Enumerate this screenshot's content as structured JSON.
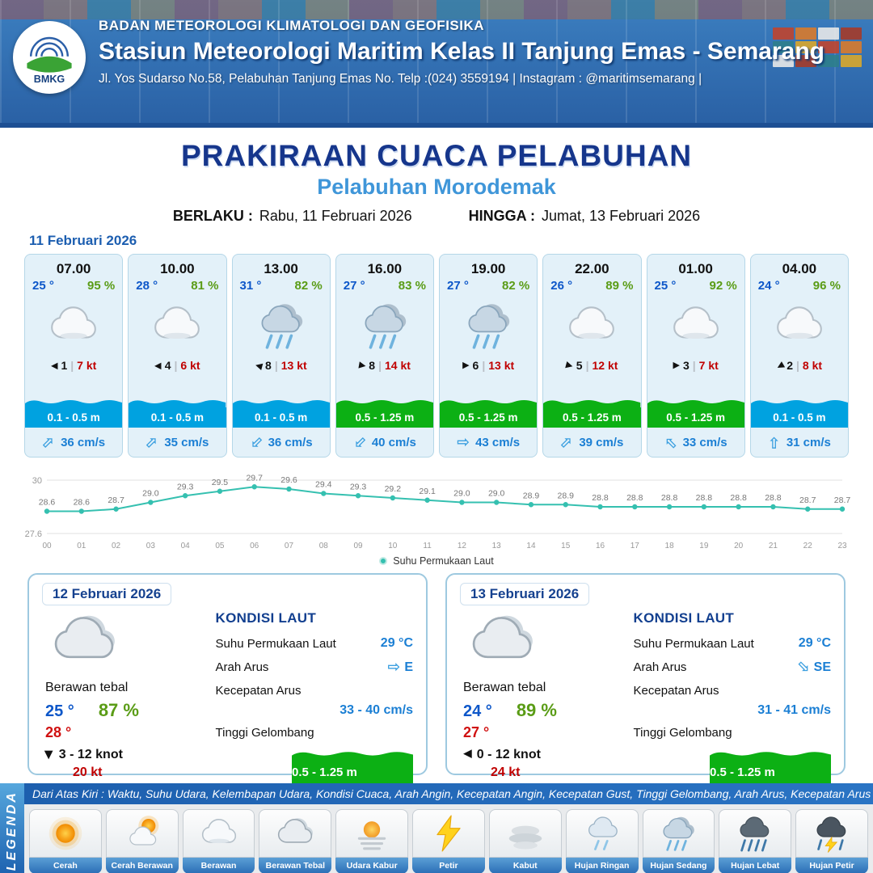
{
  "header": {
    "agency": "BADAN METEOROLOGI KLIMATOLOGI DAN GEOFISIKA",
    "station": "Stasiun Meteorologi Maritim Kelas II Tanjung Emas - Semarang",
    "address": "Jl. Yos Sudarso No.58, Pelabuhan Tanjung Emas No. Telp :(024) 3559194 | Instagram : @maritimsemarang |",
    "logo_text": "BMKG"
  },
  "title": {
    "main": "PRAKIRAAN CUACA PELABUHAN",
    "subtitle": "Pelabuhan Morodemak",
    "berlaku_label": "BERLAKU :",
    "berlaku_value": "Rabu, 11 Februari 2026",
    "hingga_label": "HINGGA :",
    "hingga_value": "Jumat, 13 Februari 2026"
  },
  "icons": {
    "wind_arrow": "▶",
    "current_arrow": "⇨",
    "sep": "|"
  },
  "hourly_section": {
    "date": "11 Februari 2026",
    "cards": [
      {
        "time": "07.00",
        "temp": "25 °",
        "humidity": "95 %",
        "icon": "berawan",
        "wind_deg": 180,
        "wind_speed": "1",
        "gust": "7 kt",
        "wave": "0.1 - 0.5 m",
        "wave_color": "#00a2e0",
        "current_deg": -45,
        "current": "36 cm/s"
      },
      {
        "time": "10.00",
        "temp": "28 °",
        "humidity": "81 %",
        "icon": "berawan",
        "wind_deg": 180,
        "wind_speed": "4",
        "gust": "6 kt",
        "wave": "0.1 - 0.5 m",
        "wave_color": "#00a2e0",
        "current_deg": -45,
        "current": "35 cm/s"
      },
      {
        "time": "13.00",
        "temp": "31 °",
        "humidity": "82 %",
        "icon": "hujan-sedang",
        "wind_deg": 195,
        "wind_speed": "8",
        "gust": "13 kt",
        "wave": "0.1 - 0.5 m",
        "wave_color": "#00a2e0",
        "current_deg": 135,
        "current": "36 cm/s"
      },
      {
        "time": "16.00",
        "temp": "27 °",
        "humidity": "83 %",
        "icon": "hujan-sedang",
        "wind_deg": 10,
        "wind_speed": "8",
        "gust": "14 kt",
        "wave": "0.5 - 1.25 m",
        "wave_color": "#0cb014",
        "current_deg": 135,
        "current": "40 cm/s"
      },
      {
        "time": "19.00",
        "temp": "27 °",
        "humidity": "82 %",
        "icon": "hujan-sedang",
        "wind_deg": 0,
        "wind_speed": "6",
        "gust": "13 kt",
        "wave": "0.5 - 1.25 m",
        "wave_color": "#0cb014",
        "current_deg": 0,
        "current": "43 cm/s"
      },
      {
        "time": "22.00",
        "temp": "26 °",
        "humidity": "89 %",
        "icon": "berawan",
        "wind_deg": 15,
        "wind_speed": "5",
        "gust": "12 kt",
        "wave": "0.5 - 1.25 m",
        "wave_color": "#0cb014",
        "current_deg": -45,
        "current": "39 cm/s"
      },
      {
        "time": "01.00",
        "temp": "25 °",
        "humidity": "92 %",
        "icon": "berawan",
        "wind_deg": 0,
        "wind_speed": "3",
        "gust": "7 kt",
        "wave": "0.5 - 1.25 m",
        "wave_color": "#0cb014",
        "current_deg": -135,
        "current": "33 cm/s"
      },
      {
        "time": "04.00",
        "temp": "24 °",
        "humidity": "96 %",
        "icon": "berawan",
        "wind_deg": 150,
        "wind_speed": "2",
        "gust": "8 kt",
        "wave": "0.1 - 0.5 m",
        "wave_color": "#00a2e0",
        "current_deg": -90,
        "current": "31 cm/s"
      }
    ]
  },
  "chart_data": {
    "type": "line",
    "x": [
      "00",
      "01",
      "02",
      "03",
      "04",
      "05",
      "06",
      "07",
      "08",
      "09",
      "10",
      "11",
      "12",
      "13",
      "14",
      "15",
      "16",
      "17",
      "18",
      "19",
      "20",
      "21",
      "22",
      "23"
    ],
    "series": [
      {
        "name": "Suhu Permukaan Laut",
        "values": [
          28.6,
          28.6,
          28.7,
          29.0,
          29.3,
          29.5,
          29.7,
          29.6,
          29.4,
          29.3,
          29.2,
          29.1,
          29.0,
          29.0,
          28.9,
          28.9,
          28.8,
          28.8,
          28.8,
          28.8,
          28.8,
          28.8,
          28.7,
          28.7
        ]
      }
    ],
    "ylim": [
      27.6,
      30
    ],
    "line_color": "#35c0b0",
    "legend_position": "bottom",
    "grid": "min-max horizontal lines",
    "title": "",
    "xlabel": "",
    "ylabel": ""
  },
  "daily": [
    {
      "date": "12 Februari 2026",
      "condition": "Berawan tebal",
      "icon": "berawan-tebal",
      "temp_min": "25 °",
      "humidity": "87 %",
      "temp_max": "28 °",
      "wind_deg": 90,
      "wind_range": "3 - 12 knot",
      "gust": "20 kt",
      "sea": {
        "heading": "KONDISI LAUT",
        "sst_label": "Suhu Permukaan Laut",
        "sst": "29 °C",
        "current_dir_label": "Arah Arus",
        "current_dir": "E",
        "current_dir_deg": 0,
        "current_speed_label": "Kecepatan Arus",
        "current_speed": "33 - 40 cm/s",
        "wave_label": "Tinggi Gelombang",
        "wave": "0.5 - 1.25 m",
        "wave_color": "#0cb014"
      }
    },
    {
      "date": "13 Februari 2026",
      "condition": "Berawan tebal",
      "icon": "berawan-tebal",
      "temp_min": "24 °",
      "humidity": "89 %",
      "temp_max": "27 °",
      "wind_deg": 180,
      "wind_range": "0 - 12 knot",
      "gust": "24 kt",
      "sea": {
        "heading": "KONDISI LAUT",
        "sst_label": "Suhu Permukaan Laut",
        "sst": "29 °C",
        "current_dir_label": "Arah Arus",
        "current_dir": "SE",
        "current_dir_deg": 45,
        "current_speed_label": "Kecepatan Arus",
        "current_speed": "31 - 41 cm/s",
        "wave_label": "Tinggi Gelombang",
        "wave": "0.5 - 1.25 m",
        "wave_color": "#0cb014"
      }
    }
  ],
  "legend": {
    "title": "LEGENDA",
    "description": "Dari Atas Kiri : Waktu, Suhu Udara, Kelembapan Udara, Kondisi Cuaca, Arah Angin, Kecepatan Angin, Kecepatan Gust, Tinggi Gelombang, Arah Arus, Kecepatan Arus",
    "items": [
      {
        "label": "Cerah",
        "icon": "cerah"
      },
      {
        "label": "Cerah Berawan",
        "icon": "cerah-berawan"
      },
      {
        "label": "Berawan",
        "icon": "berawan"
      },
      {
        "label": "Berawan Tebal",
        "icon": "berawan-tebal"
      },
      {
        "label": "Udara Kabur",
        "icon": "udara-kabur"
      },
      {
        "label": "Petir",
        "icon": "petir"
      },
      {
        "label": "Kabut",
        "icon": "kabut"
      },
      {
        "label": "Hujan Ringan",
        "icon": "hujan-ringan"
      },
      {
        "label": "Hujan Sedang",
        "icon": "hujan-sedang"
      },
      {
        "label": "Hujan Lebat",
        "icon": "hujan-lebat"
      },
      {
        "label": "Hujan Petir",
        "icon": "hujan-petir"
      }
    ]
  },
  "colors": {
    "accent_navy": "#16368c",
    "subtitle_blue": "#3f96d9",
    "temp_blue": "#0d57c9",
    "humidity_green": "#5a9c16",
    "temp_max_red": "#d01010",
    "wind_red": "#c00000",
    "current_blue": "#1b7fd4",
    "wave_blue": "#00a2e0",
    "wave_green": "#0cb014",
    "chart_teal": "#35c0b0",
    "header_blue": "#2a61a5"
  }
}
